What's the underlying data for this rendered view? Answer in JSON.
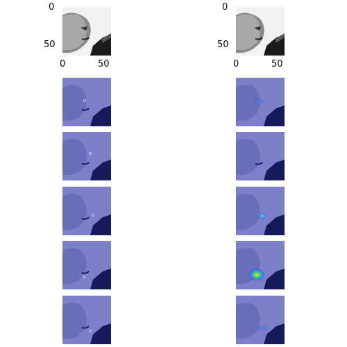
{
  "top_panels": [
    {
      "id": "left",
      "y_ticks": [
        "0",
        "50"
      ],
      "x_ticks": [
        "0",
        "50"
      ]
    },
    {
      "id": "right",
      "y_ticks": [
        "0",
        "50"
      ],
      "x_ticks": [
        "0",
        "50"
      ]
    }
  ],
  "overlay_colors": {
    "tint": "#3a3ad0",
    "background": "#7d80c8",
    "dark": "#161a5a"
  }
}
